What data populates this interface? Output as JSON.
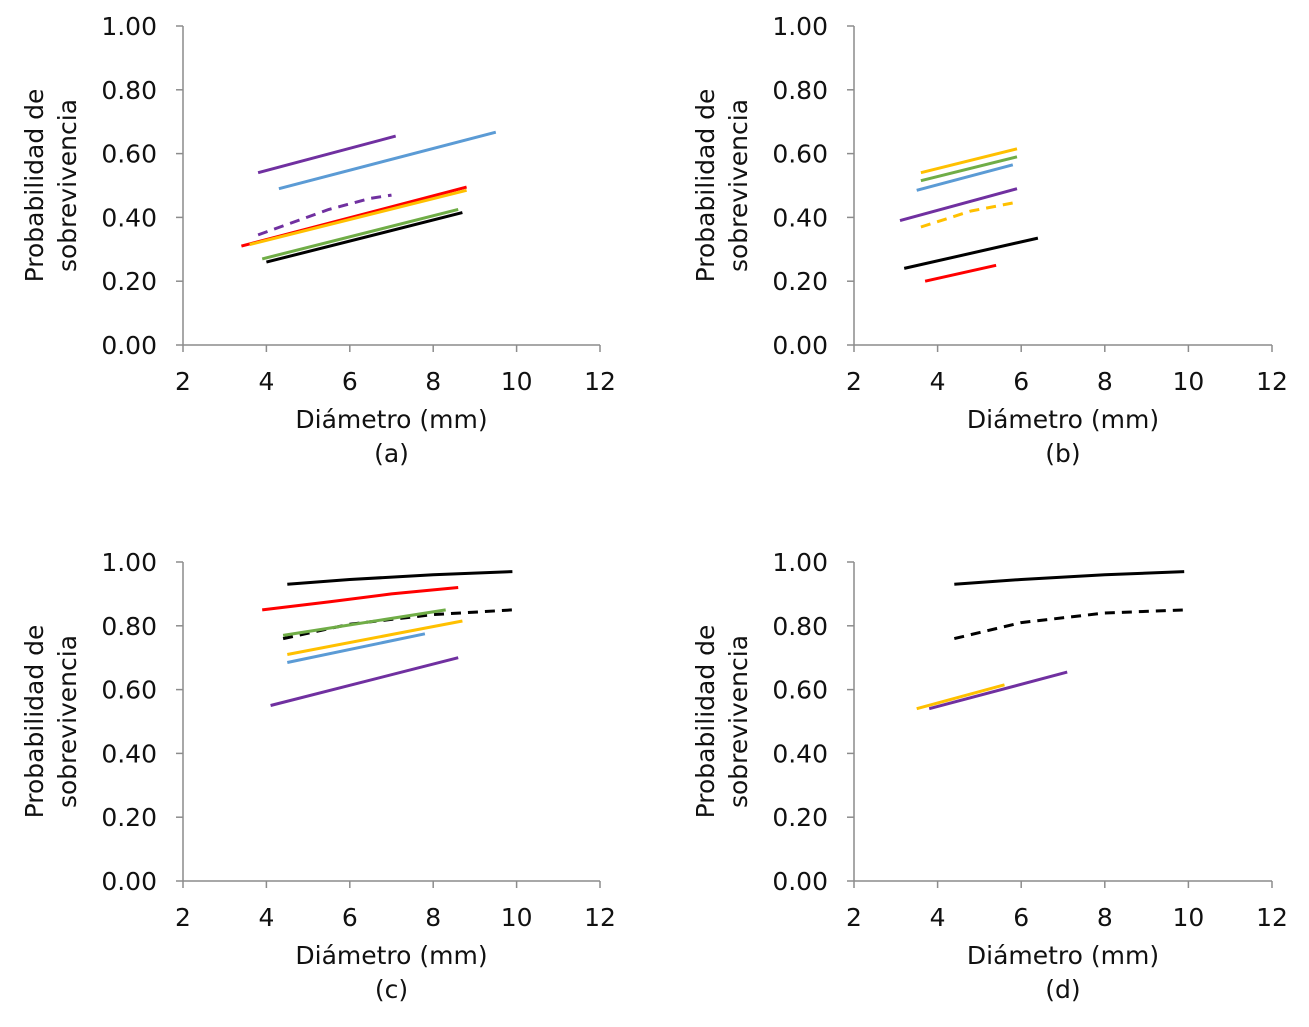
{
  "chart_data": [
    {
      "type": "line",
      "panel_label": "(a)",
      "xlabel": "Diámetro (mm)",
      "ylabel": [
        "Probabilidad de",
        "sobrevivencia"
      ],
      "xlim": [
        2,
        12
      ],
      "ylim": [
        0,
        1
      ],
      "xticks": [
        "2",
        "4",
        "6",
        "8",
        "10",
        "12"
      ],
      "yticks": [
        "0.00",
        "0.20",
        "0.40",
        "0.60",
        "0.80",
        "1.00"
      ],
      "grid": false,
      "series": [
        {
          "color": "#7030a0",
          "dash": "solid",
          "x": [
            3.8,
            7.1
          ],
          "y": [
            0.54,
            0.655
          ]
        },
        {
          "color": "#5b9bd5",
          "dash": "solid",
          "x": [
            4.3,
            9.5
          ],
          "y": [
            0.49,
            0.667
          ]
        },
        {
          "color": "#7030a0",
          "dash": "dashed",
          "x": [
            3.8,
            5.5,
            6.5,
            7.0
          ],
          "y": [
            0.345,
            0.425,
            0.46,
            0.47
          ]
        },
        {
          "color": "#ff0000",
          "dash": "solid",
          "x": [
            3.4,
            8.8
          ],
          "y": [
            0.31,
            0.495
          ]
        },
        {
          "color": "#ffc000",
          "dash": "solid",
          "x": [
            3.6,
            8.8
          ],
          "y": [
            0.315,
            0.485
          ]
        },
        {
          "color": "#70ad47",
          "dash": "solid",
          "x": [
            3.9,
            8.6
          ],
          "y": [
            0.27,
            0.425
          ]
        },
        {
          "color": "#000000",
          "dash": "solid",
          "x": [
            4.0,
            8.7
          ],
          "y": [
            0.26,
            0.415
          ]
        }
      ]
    },
    {
      "type": "line",
      "panel_label": "(b)",
      "xlabel": "Diámetro (mm)",
      "ylabel": [
        "Probabilidad de",
        "sobrevivencia"
      ],
      "xlim": [
        2,
        12
      ],
      "ylim": [
        0,
        1
      ],
      "xticks": [
        "2",
        "4",
        "6",
        "8",
        "10",
        "12"
      ],
      "yticks": [
        "0.00",
        "0.20",
        "0.40",
        "0.60",
        "0.80",
        "1.00"
      ],
      "grid": false,
      "series": [
        {
          "color": "#ffc000",
          "dash": "solid",
          "x": [
            3.6,
            5.9
          ],
          "y": [
            0.54,
            0.615
          ]
        },
        {
          "color": "#70ad47",
          "dash": "solid",
          "x": [
            3.6,
            5.9
          ],
          "y": [
            0.515,
            0.59
          ]
        },
        {
          "color": "#5b9bd5",
          "dash": "solid",
          "x": [
            3.5,
            5.8
          ],
          "y": [
            0.485,
            0.565
          ]
        },
        {
          "color": "#7030a0",
          "dash": "solid",
          "x": [
            3.1,
            5.9
          ],
          "y": [
            0.39,
            0.49
          ]
        },
        {
          "color": "#ffc000",
          "dash": "dashed",
          "x": [
            3.6,
            4.8,
            5.8
          ],
          "y": [
            0.37,
            0.42,
            0.445
          ]
        },
        {
          "color": "#000000",
          "dash": "solid",
          "x": [
            3.2,
            6.4
          ],
          "y": [
            0.24,
            0.335
          ]
        },
        {
          "color": "#ff0000",
          "dash": "solid",
          "x": [
            3.7,
            5.4
          ],
          "y": [
            0.2,
            0.25
          ]
        }
      ]
    },
    {
      "type": "line",
      "panel_label": "(c)",
      "xlabel": "Diámetro (mm)",
      "ylabel": [
        "Probabilidad de",
        "sobrevivencia"
      ],
      "xlim": [
        2,
        12
      ],
      "ylim": [
        0,
        1
      ],
      "xticks": [
        "2",
        "4",
        "6",
        "8",
        "10",
        "12"
      ],
      "yticks": [
        "0.00",
        "0.20",
        "0.40",
        "0.60",
        "0.80",
        "1.00"
      ],
      "grid": false,
      "series": [
        {
          "color": "#000000",
          "dash": "solid",
          "x": [
            4.5,
            6.0,
            8.0,
            9.9
          ],
          "y": [
            0.93,
            0.945,
            0.96,
            0.97
          ]
        },
        {
          "color": "#ff0000",
          "dash": "solid",
          "x": [
            3.9,
            5.5,
            7.0,
            8.6
          ],
          "y": [
            0.85,
            0.875,
            0.9,
            0.92
          ]
        },
        {
          "color": "#000000",
          "dash": "dashed",
          "x": [
            4.4,
            6.0,
            8.0,
            9.9
          ],
          "y": [
            0.76,
            0.805,
            0.835,
            0.85
          ]
        },
        {
          "color": "#70ad47",
          "dash": "solid",
          "x": [
            4.4,
            8.3
          ],
          "y": [
            0.77,
            0.85
          ]
        },
        {
          "color": "#ffc000",
          "dash": "solid",
          "x": [
            4.5,
            8.7
          ],
          "y": [
            0.71,
            0.815
          ]
        },
        {
          "color": "#5b9bd5",
          "dash": "solid",
          "x": [
            4.5,
            7.8
          ],
          "y": [
            0.685,
            0.775
          ]
        },
        {
          "color": "#7030a0",
          "dash": "solid",
          "x": [
            4.1,
            8.6
          ],
          "y": [
            0.55,
            0.7
          ]
        }
      ]
    },
    {
      "type": "line",
      "panel_label": "(d)",
      "xlabel": "Diámetro (mm)",
      "ylabel": [
        "Probabilidad de",
        "sobrevivencia"
      ],
      "xlim": [
        2,
        12
      ],
      "ylim": [
        0,
        1
      ],
      "xticks": [
        "2",
        "4",
        "6",
        "8",
        "10",
        "12"
      ],
      "yticks": [
        "0.00",
        "0.20",
        "0.40",
        "0.60",
        "0.80",
        "1.00"
      ],
      "grid": false,
      "series": [
        {
          "color": "#000000",
          "dash": "solid",
          "x": [
            4.4,
            6.0,
            8.0,
            9.9
          ],
          "y": [
            0.93,
            0.945,
            0.96,
            0.97
          ]
        },
        {
          "color": "#000000",
          "dash": "dashed",
          "x": [
            4.4,
            6.0,
            8.0,
            9.9
          ],
          "y": [
            0.76,
            0.81,
            0.84,
            0.85
          ]
        },
        {
          "color": "#ffc000",
          "dash": "solid",
          "x": [
            3.5,
            5.6
          ],
          "y": [
            0.54,
            0.615
          ]
        },
        {
          "color": "#7030a0",
          "dash": "solid",
          "x": [
            3.8,
            7.1
          ],
          "y": [
            0.54,
            0.655
          ]
        }
      ]
    }
  ]
}
